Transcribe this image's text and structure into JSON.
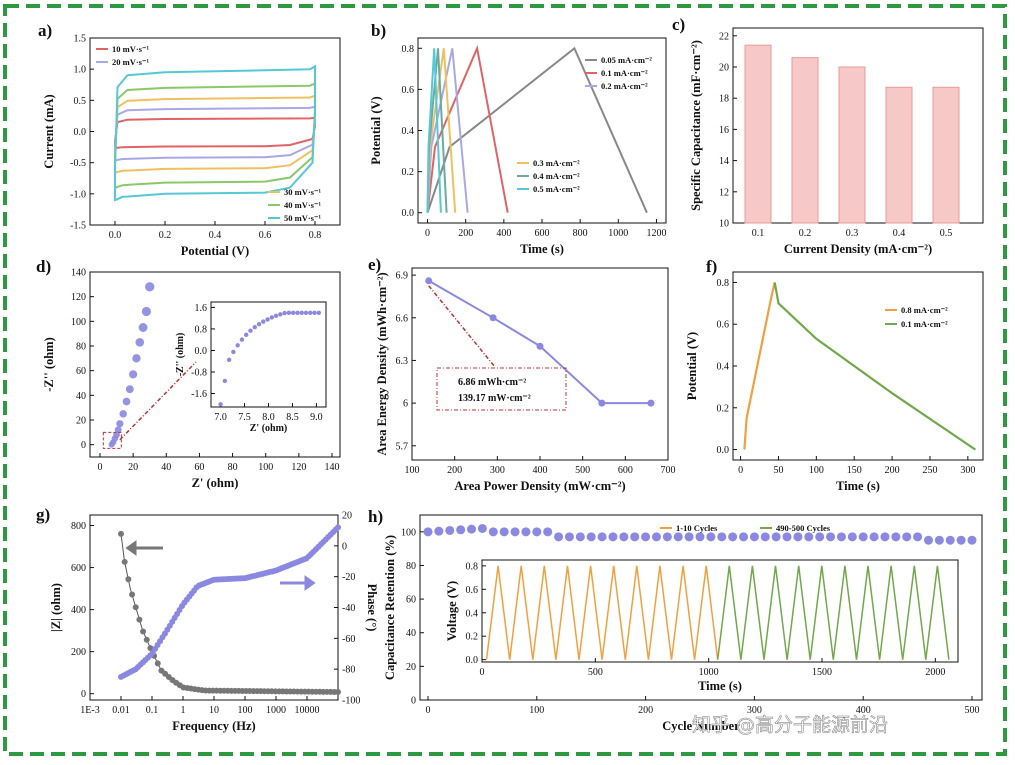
{
  "panels": {
    "a": {
      "label": "a)",
      "xlabel": "Potential (V)",
      "ylabel": "Current (mA)",
      "xticks": [
        "0.0",
        "0.2",
        "0.4",
        "0.6",
        "0.8"
      ],
      "yticks": [
        "-1.5",
        "-1.0",
        "-0.5",
        "0.0",
        "0.5",
        "1.0",
        "1.5"
      ],
      "legend_top": [
        "10 mV·s⁻¹",
        "20 mV·s⁻¹"
      ],
      "legend_bottom": [
        "30 mV·s⁻¹",
        "40 mV·s⁻¹",
        "50 mV·s⁻¹"
      ]
    },
    "b": {
      "label": "b)",
      "xlabel": "Time (s)",
      "ylabel": "Potential (V)",
      "xticks": [
        "0",
        "200",
        "400",
        "600",
        "800",
        "1000",
        "1200"
      ],
      "yticks": [
        "0.0",
        "0.2",
        "0.4",
        "0.6",
        "0.8"
      ],
      "legend_top": [
        "0.05 mA·cm⁻²",
        "0.1 mA·cm⁻²",
        "0.2 mA·cm⁻²"
      ],
      "legend_bottom": [
        "0.3 mA·cm⁻²",
        "0.4 mA·cm⁻²",
        "0.5 mA·cm⁻²"
      ]
    },
    "c": {
      "label": "c)",
      "xlabel": "Current Density (mA·cm⁻²)",
      "ylabel": "Specific Capacitance (mF·cm⁻²)",
      "xticks": [
        "0.1",
        "0.2",
        "0.3",
        "0.4",
        "0.5"
      ],
      "yticks": [
        "10",
        "12",
        "14",
        "16",
        "18",
        "20",
        "22"
      ]
    },
    "d": {
      "label": "d)",
      "xlabel": "Z' (ohm)",
      "ylabel": "-Z'' (ohm)",
      "xticks": [
        "0",
        "20",
        "40",
        "60",
        "80",
        "100",
        "120",
        "140"
      ],
      "yticks": [
        "0",
        "20",
        "40",
        "60",
        "80",
        "100",
        "120",
        "140"
      ],
      "inset_xlabel": "Z' (ohm)",
      "inset_ylabel": "-Z'' (ohm)",
      "inset_xticks": [
        "7.0",
        "7.5",
        "8.0",
        "8.5",
        "9.0"
      ],
      "inset_yticks": [
        "-1.6",
        "-0.8",
        "0.0",
        "0.8",
        "1.6"
      ]
    },
    "e": {
      "label": "e)",
      "xlabel": "Area Power Density (mW·cm⁻²)",
      "ylabel": "Area Energy Density (mWh·cm⁻²)",
      "xticks": [
        "100",
        "200",
        "300",
        "400",
        "500",
        "600",
        "700"
      ],
      "yticks": [
        "5.7",
        "6",
        "6.3",
        "6.6",
        "6.9"
      ],
      "annotation_line1": "6.86 mWh·cm⁻²",
      "annotation_line2": "139.17 mW·cm⁻²"
    },
    "f": {
      "label": "f)",
      "xlabel": "Time (s)",
      "ylabel": "Potential (V)",
      "xticks": [
        "0",
        "50",
        "100",
        "150",
        "200",
        "250",
        "300"
      ],
      "yticks": [
        "0.0",
        "0.2",
        "0.4",
        "0.6",
        "0.8"
      ],
      "legend": [
        "0.8 mA·cm⁻²",
        "0.1 mA·cm⁻²"
      ]
    },
    "g": {
      "label": "g)",
      "xlabel": "Frequency (Hz)",
      "ylabel": "|Z| (ohm)",
      "y2label": "Phase (°)",
      "xticks": [
        "1E-3",
        "0.01",
        "0.1",
        "1",
        "10",
        "100",
        "1000",
        "10000"
      ],
      "yticks": [
        "0",
        "200",
        "400",
        "600",
        "800"
      ],
      "y2ticks": [
        "20",
        "0",
        "-20",
        "-40",
        "-60",
        "-80",
        "-100"
      ]
    },
    "h": {
      "label": "h)",
      "xlabel": "Cycle Number",
      "ylabel": "Capacitance Retention (%)",
      "xticks": [
        "0",
        "100",
        "200",
        "300",
        "400",
        "500"
      ],
      "yticks": [
        "0",
        "20",
        "40",
        "60",
        "80",
        "100"
      ],
      "legend": [
        "1-10 Cycles",
        "490-500 Cycles"
      ],
      "inset_xlabel": "Time (s)",
      "inset_ylabel": "Voltage (V)",
      "inset_xticks": [
        "0",
        "500",
        "1000",
        "1500",
        "2000"
      ],
      "inset_yticks": [
        "0.0",
        "0.2",
        "0.4",
        "0.6",
        "0.8"
      ]
    }
  },
  "watermark": "知乎 @高分子能源前沿",
  "colors": {
    "border": "#2e9a3f",
    "red": "#e06464",
    "blue": "#a8a8e6",
    "cyan": "#55c8d8",
    "orange": "#f0a040",
    "green": "#70a84a",
    "purple": "#8a88e0",
    "bar": "#f7c8c8"
  },
  "chart_data": [
    {
      "panel": "a",
      "type": "line",
      "title": "",
      "xlabel": "Potential (V)",
      "ylabel": "Current (mA)",
      "xlim": [
        -0.1,
        0.9
      ],
      "ylim": [
        -1.5,
        1.5
      ],
      "series": [
        {
          "name": "10 mV·s⁻¹",
          "upper": 0.2,
          "lower": -0.24
        },
        {
          "name": "20 mV·s⁻¹",
          "upper": 0.36,
          "lower": -0.42
        },
        {
          "name": "30 mV·s⁻¹",
          "upper": 0.52,
          "lower": -0.6
        },
        {
          "name": "40 mV·s⁻¹",
          "upper": 0.7,
          "lower": -0.82
        },
        {
          "name": "50 mV·s⁻¹",
          "upper": 0.95,
          "lower": -1.0
        }
      ]
    },
    {
      "panel": "b",
      "type": "line",
      "xlabel": "Time (s)",
      "ylabel": "Potential (V)",
      "xlim": [
        -50,
        1250
      ],
      "ylim": [
        -0.05,
        0.85
      ],
      "series": [
        {
          "name": "0.05 mA·cm⁻²",
          "peak_t": 770,
          "end_t": 1150
        },
        {
          "name": "0.1 mA·cm⁻²",
          "peak_t": 260,
          "end_t": 420
        },
        {
          "name": "0.2 mA·cm⁻²",
          "peak_t": 130,
          "end_t": 210
        },
        {
          "name": "0.3 mA·cm⁻²",
          "peak_t": 85,
          "end_t": 145
        },
        {
          "name": "0.4 mA·cm⁻²",
          "peak_t": 55,
          "end_t": 100
        },
        {
          "name": "0.5 mA·cm⁻²",
          "peak_t": 35,
          "end_t": 70
        }
      ]
    },
    {
      "panel": "c",
      "type": "bar",
      "categories": [
        "0.1",
        "0.2",
        "0.3",
        "0.4",
        "0.5"
      ],
      "values": [
        21.4,
        20.6,
        20.0,
        18.7,
        18.7
      ],
      "xlabel": "Current Density (mA·cm⁻²)",
      "ylabel": "Specific Capacitance (mF·cm⁻²)",
      "ylim": [
        10,
        22.5
      ]
    },
    {
      "panel": "d",
      "type": "scatter",
      "xlabel": "Z' (ohm)",
      "ylabel": "-Z'' (ohm)",
      "xlim": [
        0,
        140
      ],
      "ylim": [
        -10,
        140
      ],
      "x": [
        7,
        8,
        9,
        10,
        11,
        12,
        14,
        16,
        18,
        20,
        22,
        24,
        26,
        28,
        30
      ],
      "y": [
        0,
        2,
        5,
        8,
        12,
        17,
        25,
        35,
        45,
        57,
        70,
        83,
        95,
        108,
        128
      ]
    },
    {
      "panel": "e",
      "type": "line",
      "xlabel": "Area Power Density (mW·cm⁻²)",
      "ylabel": "Area Energy Density (mWh·cm⁻²)",
      "xlim": [
        100,
        700
      ],
      "ylim": [
        5.6,
        6.95
      ],
      "x": [
        139.17,
        290,
        400,
        545,
        660
      ],
      "y": [
        6.86,
        6.6,
        6.4,
        6.0,
        6.0
      ]
    },
    {
      "panel": "f",
      "type": "line",
      "xlabel": "Time (s)",
      "ylabel": "Potential (V)",
      "xlim": [
        -10,
        320
      ],
      "ylim": [
        -0.05,
        0.85
      ],
      "series": [
        {
          "name": "0.8 mA·cm⁻²",
          "x": [
            5,
            8,
            40,
            45
          ],
          "y": [
            0.0,
            0.15,
            0.72,
            0.8
          ]
        },
        {
          "name": "0.1 mA·cm⁻²",
          "x": [
            45,
            50,
            100,
            200,
            310
          ],
          "y": [
            0.8,
            0.7,
            0.53,
            0.27,
            0.0
          ]
        }
      ]
    },
    {
      "panel": "g",
      "type": "line",
      "xlabel": "Frequency (Hz)",
      "ylabel": "|Z| (ohm)",
      "y2label": "Phase (°)",
      "xscale": "log",
      "ylim": [
        -30,
        850
      ],
      "y2lim": [
        -100,
        20
      ],
      "series": [
        {
          "name": "|Z|",
          "x": [
            0.01,
            0.013,
            0.02,
            0.03,
            0.05,
            0.1,
            0.2,
            0.5,
            1,
            5,
            100000
          ],
          "y": [
            760,
            630,
            500,
            410,
            300,
            200,
            110,
            60,
            30,
            15,
            8
          ]
        },
        {
          "name": "Phase",
          "x": [
            0.01,
            0.03,
            0.1,
            0.3,
            1,
            3,
            10,
            100,
            1000,
            10000,
            100000
          ],
          "y": [
            -85,
            -80,
            -70,
            -55,
            -38,
            -26,
            -22,
            -21,
            -16,
            -8,
            12
          ]
        }
      ]
    },
    {
      "panel": "h",
      "type": "scatter",
      "xlabel": "Cycle Number",
      "ylabel": "Capacitance Retention (%)",
      "xlim": [
        0,
        500
      ],
      "ylim": [
        0,
        110
      ],
      "x": [
        0,
        50,
        60,
        110,
        120,
        450,
        460,
        500
      ],
      "y": [
        100,
        102,
        100,
        100,
        97,
        97,
        95,
        95
      ]
    }
  ]
}
